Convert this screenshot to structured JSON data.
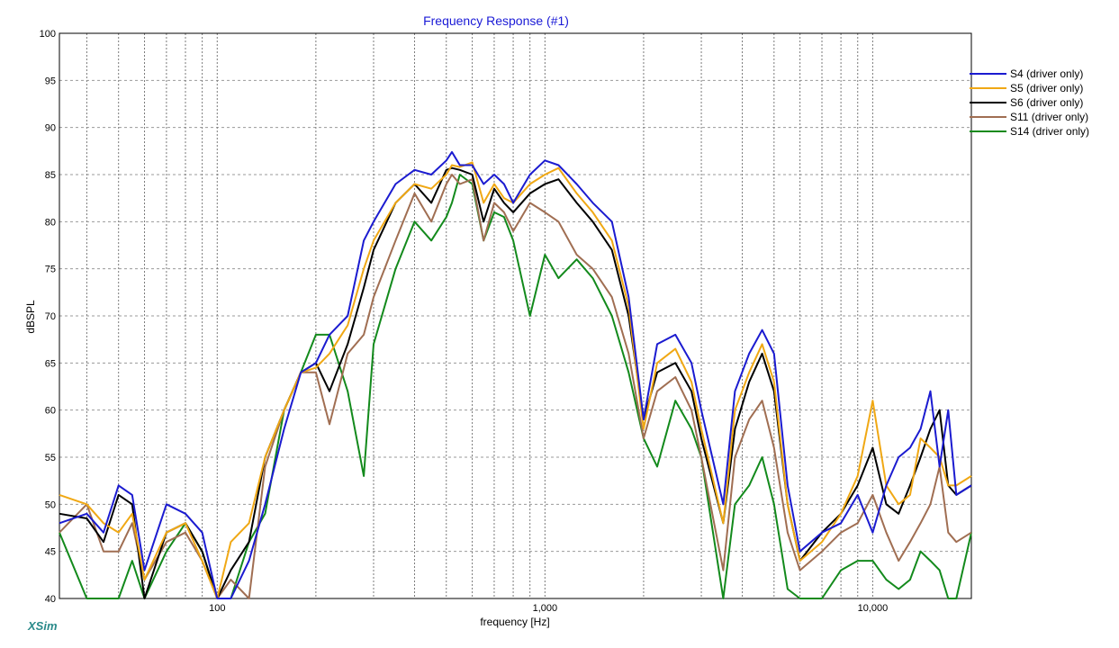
{
  "chart_data": {
    "type": "line",
    "title": "Frequency Response (#1)",
    "xlabel": "frequency [Hz]",
    "ylabel": "dBSPL",
    "x_scale": "log",
    "xlim": [
      33,
      20000
    ],
    "ylim": [
      40,
      100
    ],
    "grid": true,
    "legend_position": "top-right",
    "x_tick_labels": [
      {
        "x": 100,
        "label": "100"
      },
      {
        "x": 1000,
        "label": "1,000"
      },
      {
        "x": 10000,
        "label": "10,000"
      }
    ],
    "y_ticks": [
      40,
      45,
      50,
      55,
      60,
      65,
      70,
      75,
      80,
      85,
      90,
      95,
      100
    ],
    "series": [
      {
        "name": "S4 (driver only)",
        "color": "#1b1bd0",
        "x": [
          33,
          40,
          45,
          50,
          55,
          60,
          70,
          80,
          90,
          100,
          110,
          125,
          140,
          160,
          180,
          200,
          220,
          250,
          280,
          300,
          350,
          400,
          450,
          500,
          520,
          550,
          600,
          650,
          700,
          750,
          800,
          900,
          1000,
          1100,
          1250,
          1400,
          1600,
          1800,
          2000,
          2200,
          2500,
          2800,
          3000,
          3500,
          3800,
          4200,
          4600,
          5000,
          5500,
          6000,
          7000,
          8000,
          9000,
          10000,
          11000,
          12000,
          13000,
          14000,
          15000,
          16000,
          17000,
          18000,
          20000
        ],
        "y": [
          48,
          49,
          47,
          52,
          51,
          43,
          50,
          49,
          47,
          40,
          40,
          44,
          50,
          58,
          64,
          65,
          68,
          70,
          78,
          80,
          84,
          85.5,
          85,
          86.5,
          87.4,
          86,
          86,
          84,
          85,
          84,
          82,
          85,
          86.5,
          86,
          84,
          82,
          80,
          72,
          59,
          67,
          68,
          65,
          60,
          50,
          62,
          66,
          68.5,
          66,
          52,
          45,
          47,
          48,
          51,
          47,
          52,
          55,
          56,
          58,
          62,
          54,
          60,
          51,
          52
        ]
      },
      {
        "name": "S5 (driver only)",
        "color": "#f0a814",
        "x": [
          33,
          40,
          45,
          50,
          55,
          60,
          70,
          80,
          90,
          100,
          110,
          125,
          140,
          160,
          180,
          200,
          220,
          250,
          280,
          300,
          350,
          400,
          450,
          500,
          520,
          550,
          600,
          650,
          700,
          750,
          800,
          900,
          1000,
          1100,
          1250,
          1400,
          1600,
          1800,
          2000,
          2200,
          2500,
          2800,
          3000,
          3500,
          3800,
          4200,
          4600,
          5000,
          5500,
          6000,
          7000,
          8000,
          9000,
          10000,
          11000,
          12000,
          13000,
          14000,
          15000,
          16000,
          17000,
          18000,
          20000
        ],
        "y": [
          51,
          50,
          48,
          47,
          49,
          42,
          47,
          48,
          44,
          40,
          46,
          48,
          55,
          60,
          64,
          64.5,
          66,
          69,
          75,
          78,
          82,
          84,
          83.5,
          85,
          86,
          85.8,
          86.3,
          82,
          84,
          82.5,
          82,
          84,
          85,
          85.7,
          83,
          81,
          78,
          71,
          58,
          65,
          66.5,
          63,
          58,
          48,
          60,
          64,
          67,
          63,
          50,
          44,
          46,
          49,
          53,
          61,
          52,
          50,
          51,
          57,
          56,
          55,
          52,
          52,
          53
        ]
      },
      {
        "name": "S6 (driver only)",
        "color": "#000000",
        "x": [
          33,
          40,
          45,
          50,
          55,
          60,
          70,
          80,
          90,
          100,
          110,
          125,
          140,
          160,
          180,
          200,
          220,
          250,
          280,
          300,
          350,
          400,
          450,
          500,
          520,
          550,
          600,
          650,
          700,
          750,
          800,
          900,
          1000,
          1100,
          1250,
          1400,
          1600,
          1800,
          2000,
          2200,
          2500,
          2800,
          3000,
          3500,
          3800,
          4200,
          4600,
          5000,
          5500,
          6000,
          7000,
          8000,
          9000,
          10000,
          11000,
          12000,
          13000,
          14000,
          15000,
          16000,
          17000,
          18000,
          20000
        ],
        "y": [
          49,
          48.5,
          46,
          51,
          50,
          40,
          47,
          48,
          45,
          40,
          43,
          46,
          55,
          60,
          64,
          65,
          62,
          67,
          73,
          77,
          82,
          84,
          82,
          85.5,
          85.7,
          85.5,
          85,
          80,
          83.5,
          82,
          81,
          83,
          84,
          84.5,
          82,
          80,
          77,
          70,
          59,
          64,
          65,
          62,
          57,
          48,
          58,
          63,
          66,
          62,
          50,
          44,
          47,
          49,
          52,
          56,
          50,
          49,
          52,
          55,
          58,
          60,
          52,
          51,
          52
        ]
      },
      {
        "name": "S11 (driver only)",
        "color": "#a06e52",
        "x": [
          33,
          40,
          45,
          50,
          55,
          60,
          70,
          80,
          90,
          100,
          110,
          125,
          140,
          160,
          180,
          200,
          220,
          250,
          280,
          300,
          350,
          400,
          450,
          500,
          520,
          550,
          600,
          650,
          700,
          750,
          800,
          900,
          1000,
          1100,
          1250,
          1400,
          1600,
          1800,
          2000,
          2200,
          2500,
          2800,
          3000,
          3500,
          3800,
          4200,
          4600,
          5000,
          5500,
          6000,
          7000,
          8000,
          9000,
          10000,
          11000,
          12000,
          13000,
          14000,
          15000,
          16000,
          17000,
          18000,
          20000
        ],
        "y": [
          47,
          50,
          45,
          45,
          48,
          42,
          46,
          47,
          44,
          40,
          42,
          40,
          54,
          60,
          64,
          64,
          58.5,
          66,
          68,
          72,
          78,
          83,
          80,
          84,
          85,
          84,
          84.5,
          78,
          82,
          81,
          79,
          82,
          81,
          80,
          76.5,
          75,
          72,
          66,
          57,
          62,
          63.5,
          60,
          55,
          43,
          55,
          59,
          61,
          56,
          47,
          43,
          45,
          47,
          48,
          51,
          47,
          44,
          46,
          48,
          50,
          54,
          47,
          46,
          47
        ]
      },
      {
        "name": "S14 (driver only)",
        "color": "#138a1c",
        "x": [
          33,
          40,
          45,
          50,
          55,
          60,
          70,
          80,
          90,
          100,
          110,
          125,
          140,
          160,
          180,
          200,
          220,
          250,
          280,
          300,
          350,
          400,
          450,
          500,
          520,
          550,
          600,
          650,
          700,
          750,
          800,
          900,
          1000,
          1100,
          1250,
          1400,
          1600,
          1800,
          2000,
          2200,
          2500,
          2800,
          3000,
          3500,
          3800,
          4200,
          4600,
          5000,
          5500,
          6000,
          7000,
          8000,
          9000,
          10000,
          11000,
          12000,
          13000,
          14000,
          15000,
          16000,
          17000,
          18000,
          20000
        ],
        "y": [
          47,
          40,
          40,
          40,
          44,
          40,
          45,
          48,
          45,
          40,
          40,
          46,
          49,
          60,
          64,
          68,
          68,
          62,
          53,
          67,
          75,
          80,
          78,
          80.5,
          82,
          85,
          84,
          78,
          81,
          80.5,
          78,
          70,
          76.5,
          74,
          76,
          74,
          70,
          64,
          57,
          54,
          61,
          58,
          55,
          40,
          50,
          52,
          55,
          50,
          41,
          40,
          40,
          43,
          44,
          44,
          42,
          41,
          42,
          45,
          44,
          43,
          40,
          40,
          47
        ]
      }
    ],
    "watermark": "XSim"
  }
}
